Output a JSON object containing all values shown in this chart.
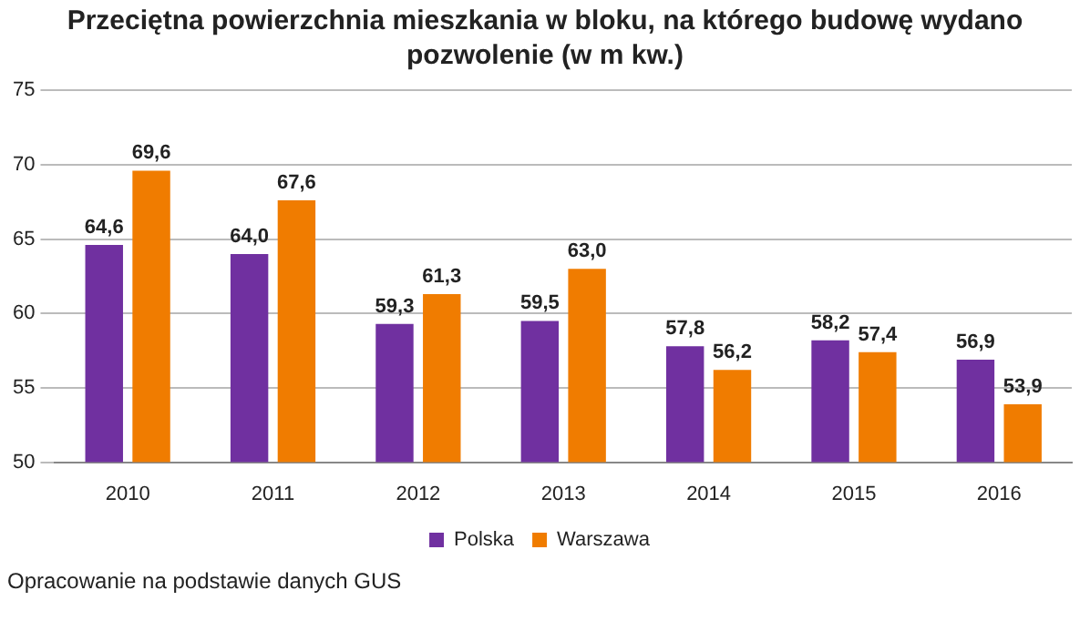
{
  "chart_data": {
    "type": "bar",
    "title": "Przeciętna powierzchnia mieszkania w bloku, na którego budowę wydano pozwolenie (w m kw.)",
    "categories": [
      "2010",
      "2011",
      "2012",
      "2013",
      "2014",
      "2015",
      "2016"
    ],
    "series": [
      {
        "name": "Polska",
        "color": "#7030a0",
        "values": [
          64.6,
          64.0,
          59.3,
          59.5,
          57.8,
          58.2,
          56.9
        ],
        "value_labels": [
          "64,6",
          "64,0",
          "59,3",
          "59,5",
          "57,8",
          "58,2",
          "56,9"
        ]
      },
      {
        "name": "Warszawa",
        "color": "#f07c00",
        "values": [
          69.6,
          67.6,
          61.3,
          63.0,
          56.2,
          57.4,
          53.9
        ],
        "value_labels": [
          "69,6",
          "67,6",
          "61,3",
          "63,0",
          "56,2",
          "57,4",
          "53,9"
        ]
      }
    ],
    "ylim": [
      50,
      75
    ],
    "yticks": [
      50,
      55,
      60,
      65,
      70,
      75
    ],
    "grid": "y",
    "legend": "bottom",
    "annotations": [
      "Opracowanie na podstawie danych GUS"
    ]
  }
}
